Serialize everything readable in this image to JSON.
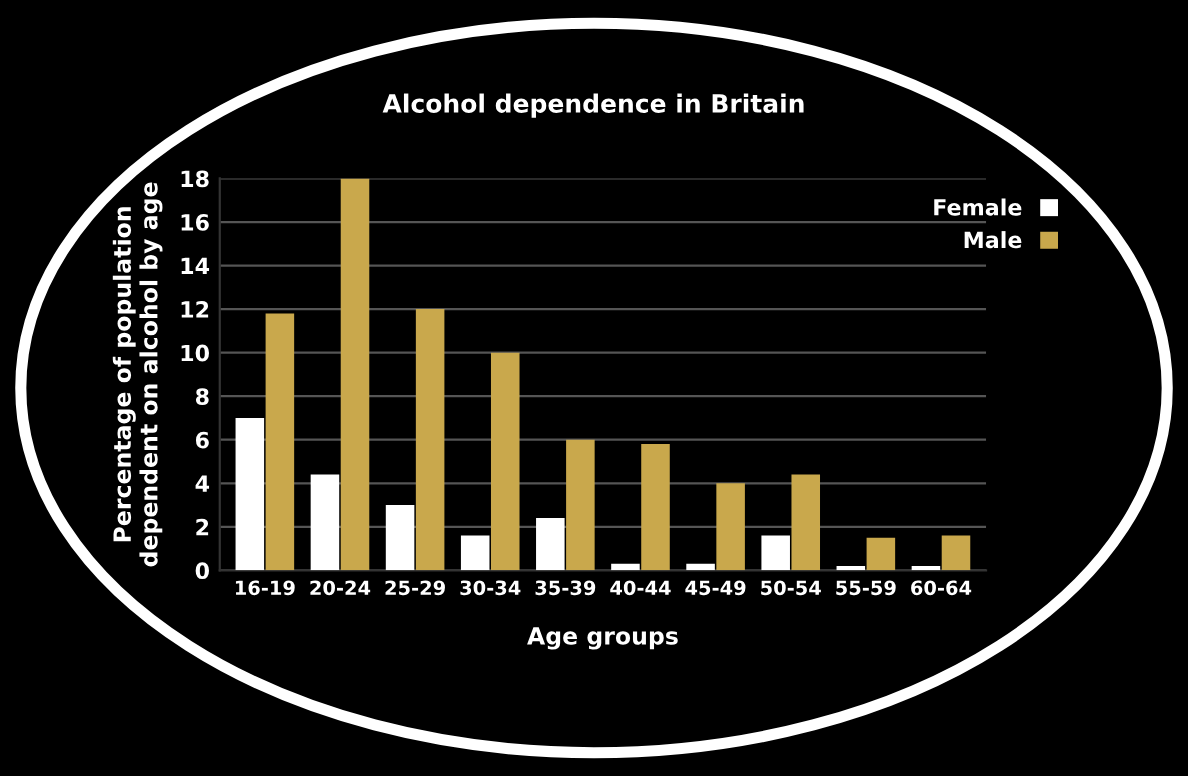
{
  "chart_data": {
    "type": "bar",
    "title": "Alcohol dependence in Britain",
    "xlabel": "Age groups",
    "ylabel": "Percentage of population\ndependent on alcohol by age",
    "categories": [
      "16-19",
      "20-24",
      "25-29",
      "30-34",
      "35-39",
      "40-44",
      "45-49",
      "50-54",
      "55-59",
      "60-64"
    ],
    "series": [
      {
        "name": "Female",
        "color": "#ffffff",
        "values": [
          7,
          4.4,
          3,
          1.6,
          2.4,
          0.3,
          0.3,
          1.6,
          0.2,
          0.2
        ]
      },
      {
        "name": "Male",
        "color": "#c9a84c",
        "values": [
          11.8,
          18,
          12,
          10,
          6,
          5.8,
          4,
          4.4,
          1.5,
          1.6
        ]
      }
    ],
    "ylim": [
      0,
      18
    ],
    "yticks": [
      0,
      2,
      4,
      6,
      8,
      10,
      12,
      14,
      16,
      18
    ],
    "grid": "y",
    "legend": "top right"
  }
}
